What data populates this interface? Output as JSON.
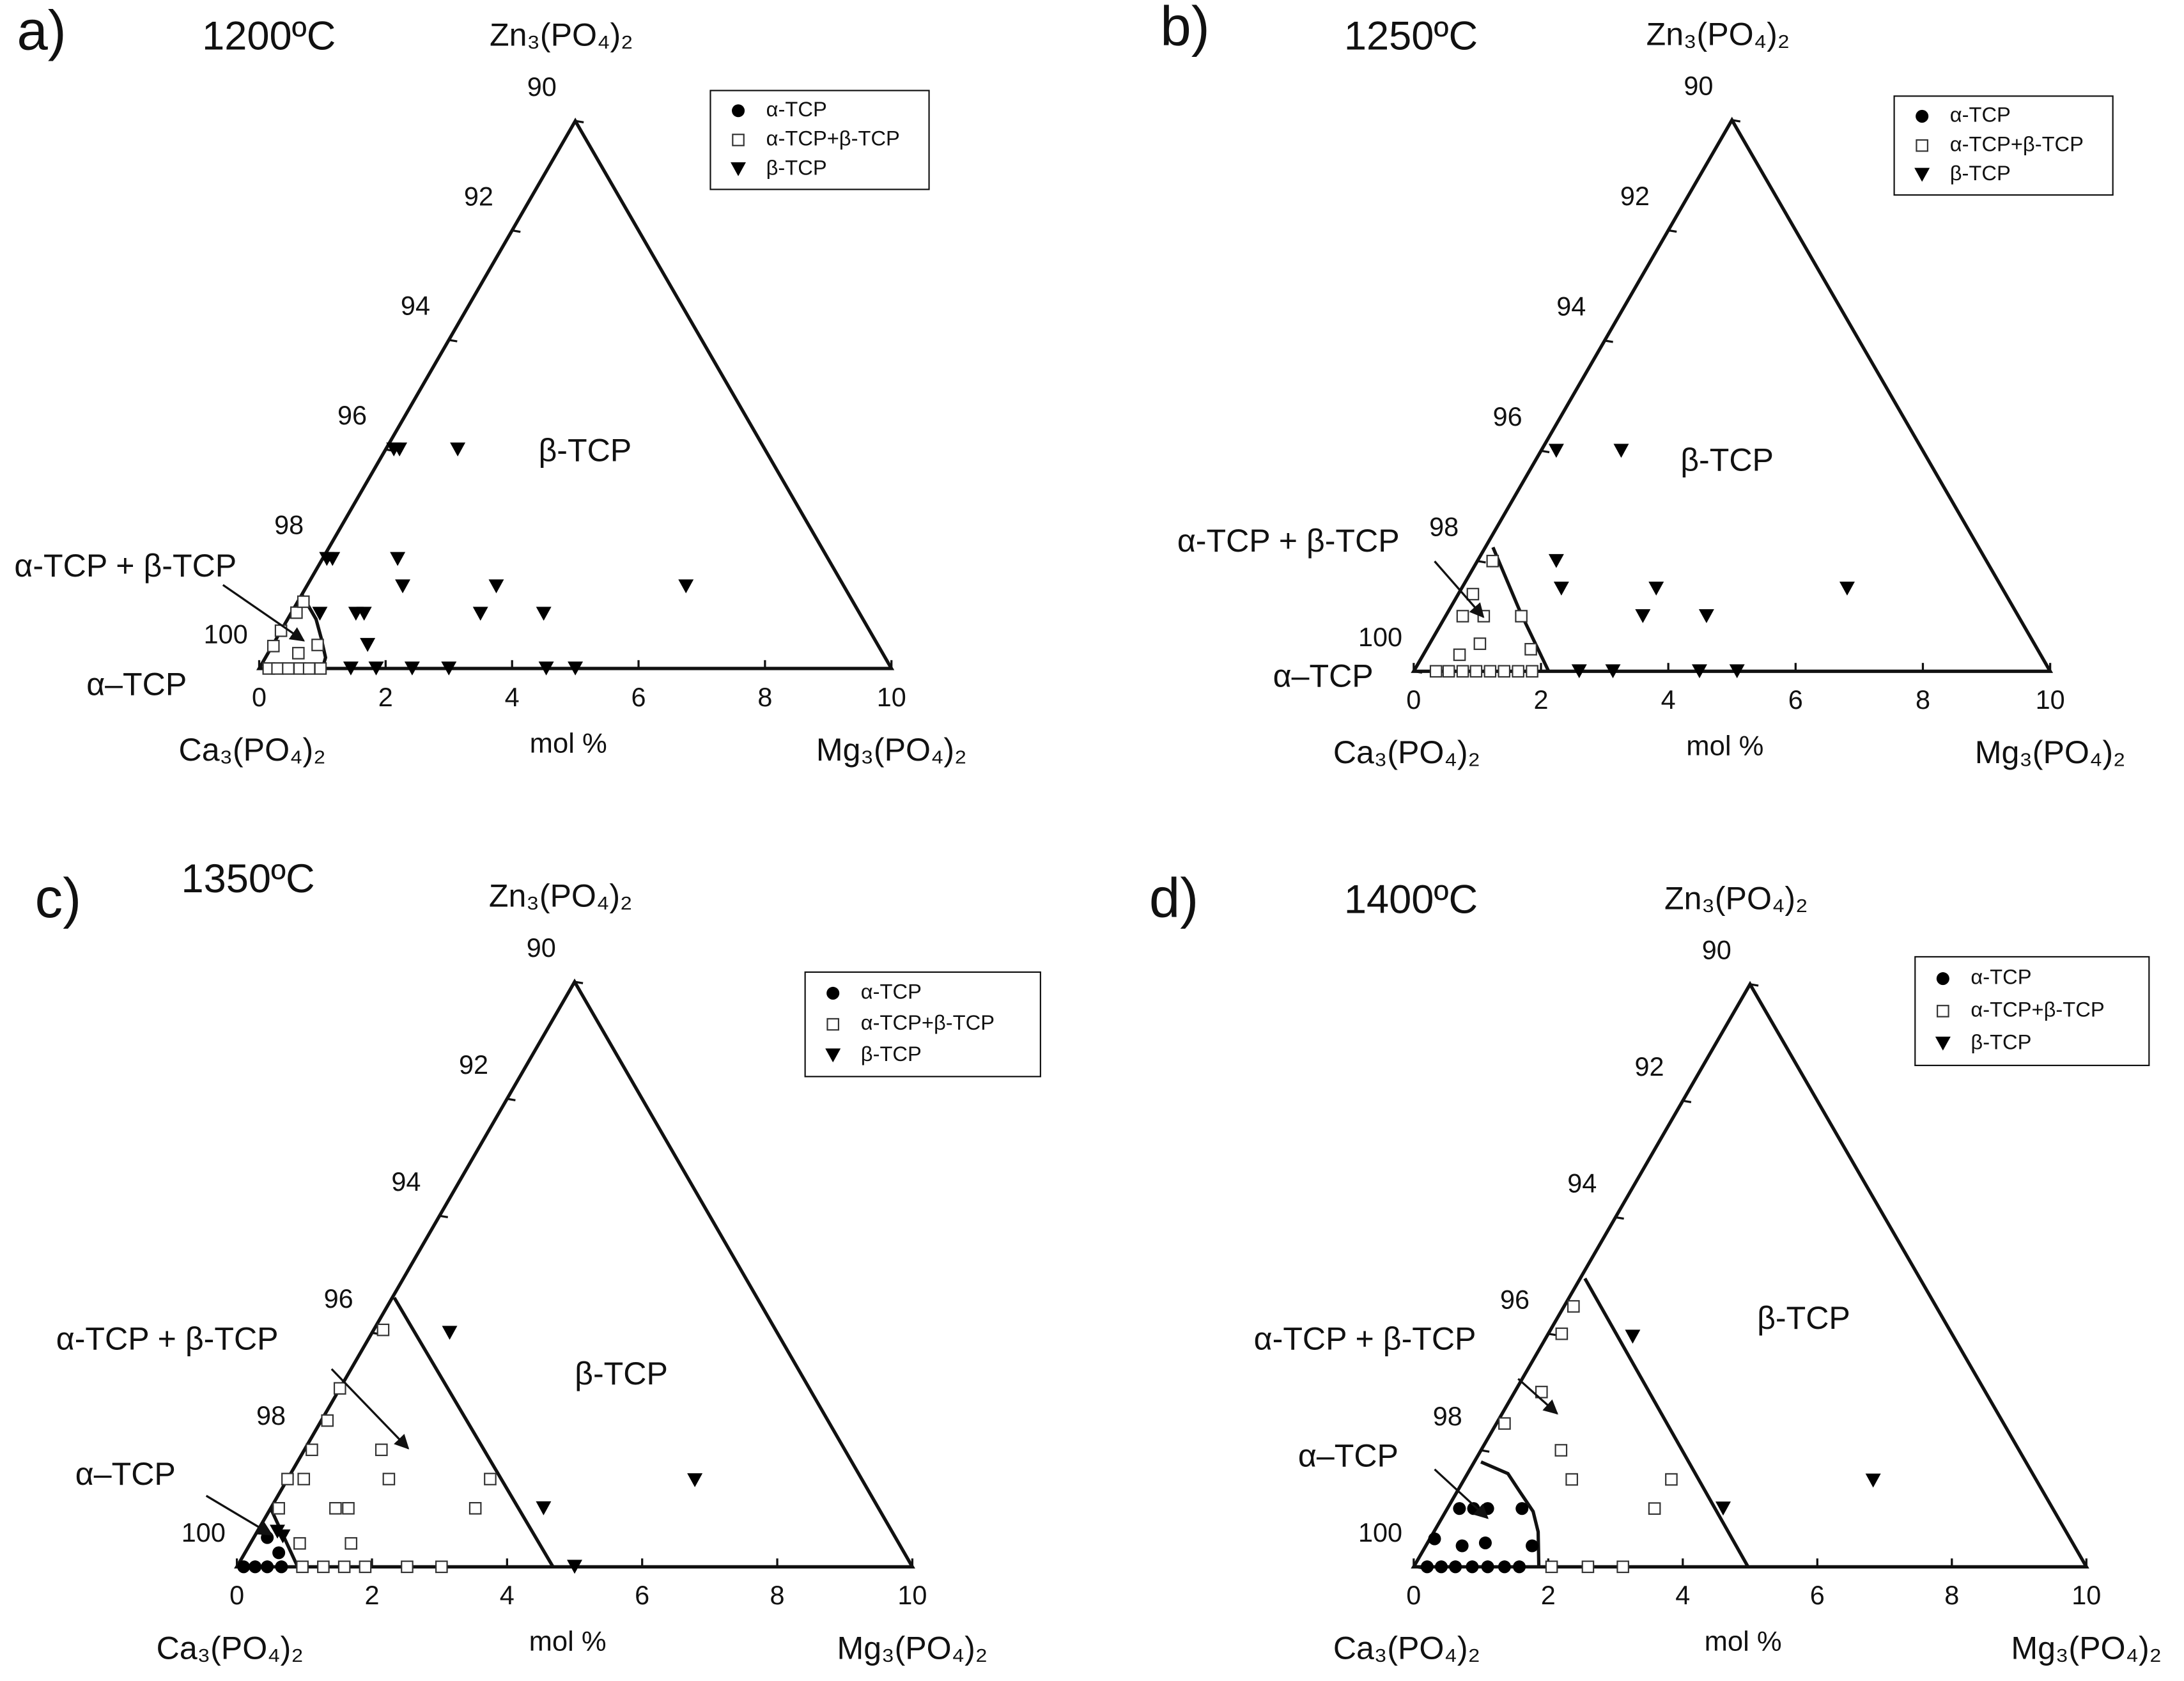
{
  "chart_data": [
    {
      "type": "ternary",
      "panel_label": "a)",
      "title": "1200ºC",
      "corner_labels": {
        "top": "Zn₃(PO₄)₂",
        "left": "Ca₃(PO₄)₂",
        "right": "Mg₃(PO₄)₂"
      },
      "xlabel": "mol %",
      "xlim": [
        0,
        10
      ],
      "xticks": [
        0,
        2,
        4,
        6,
        8,
        10
      ],
      "ylim": [
        100,
        90
      ],
      "yticks": [
        90,
        92,
        94,
        96,
        98,
        100
      ],
      "series": [
        {
          "name": "α-TCP",
          "marker": "circle",
          "color": "#000000",
          "x": [],
          "values": []
        },
        {
          "name": "α-TCP+β-TCP",
          "marker": "square",
          "color": "#333333",
          "x": [
            0.02,
            0,
            0.08,
            0.09,
            0.71,
            0.48,
            0.15,
            0.29,
            0.46,
            0.64,
            0.79,
            0.97
          ],
          "values": [
            0.41,
            0.69,
            1.02,
            1.22,
            0.43,
            0.28,
            0,
            0,
            0,
            0,
            0,
            0
          ]
        },
        {
          "name": "β-TCP",
          "marker": "triangle",
          "color": "#000000",
          "x": [
            0.13,
            0.22,
            1.14,
            0.07,
            0.16,
            1.19,
            1.52,
            3.0,
            6.0,
            0.46,
            1.03,
            1.16,
            3.0,
            4.0,
            1.5,
            1.45,
            1.85,
            2.42,
            3.0,
            4.54,
            5.0
          ],
          "values": [
            4.0,
            4.0,
            4.0,
            2.0,
            2.0,
            2.0,
            1.5,
            1.5,
            1.5,
            1.0,
            1.0,
            1.0,
            1.0,
            1.0,
            0.43,
            0,
            0,
            0,
            0,
            0,
            0
          ]
        }
      ],
      "boundaries": [
        {
          "x": [
            0,
            0.45,
            0.7,
            0.95,
            1.0
          ],
          "values": [
            1.35,
            0.9,
            0.56,
            0.2,
            0
          ]
        }
      ],
      "annotations": [
        {
          "text": "β-TCP"
        },
        {
          "text": "α-TCP + β-TCP"
        },
        {
          "text": "α–TCP"
        }
      ]
    },
    {
      "type": "ternary",
      "panel_label": "b)",
      "title": "1250ºC",
      "corner_labels": {
        "top": "Zn₃(PO₄)₂",
        "left": "Ca₃(PO₄)₂",
        "right": "Mg₃(PO₄)₂"
      },
      "xlabel": "mol %",
      "xlim": [
        0,
        10
      ],
      "xticks": [
        0,
        2,
        4,
        6,
        8,
        10
      ],
      "ylim": [
        100,
        90
      ],
      "yticks": [
        90,
        92,
        94,
        96,
        98,
        100
      ],
      "series": [
        {
          "name": "α-TCP",
          "marker": "circle",
          "color": "#000000",
          "x": [],
          "values": []
        },
        {
          "name": "α-TCP+β-TCP",
          "marker": "square",
          "color": "#333333",
          "x": [
            0.24,
            0.6,
            1.19,
            0.27,
            0.23,
            0.57,
            0.79,
            1.64,
            0.35,
            0.55,
            0.77,
            0.98,
            1.2,
            1.42,
            1.64,
            1.86
          ],
          "values": [
            2.0,
            1.0,
            1.0,
            1.0,
            1.4,
            0.3,
            0.5,
            0.4,
            0,
            0,
            0,
            0,
            0,
            0,
            0,
            0
          ]
        },
        {
          "name": "β-TCP",
          "marker": "triangle",
          "color": "#000000",
          "x": [
            0.24,
            1.26,
            1.24,
            1.57,
            3.06,
            6.06,
            3.1,
            4.1,
            2.6,
            3.13,
            4.49,
            5.08
          ],
          "values": [
            4,
            4,
            2,
            1.5,
            1.5,
            1.5,
            1,
            1,
            0,
            0,
            0,
            0
          ]
        }
      ],
      "boundaries": [
        {
          "x": [
            0.12,
            1.15,
            2.12
          ],
          "values": [
            2.25,
            1.06,
            0
          ]
        }
      ],
      "annotations": [
        {
          "text": "β-TCP"
        },
        {
          "text": "α-TCP + β-TCP"
        },
        {
          "text": "α–TCP"
        }
      ]
    },
    {
      "type": "ternary",
      "panel_label": "c)",
      "title": "1350ºC",
      "corner_labels": {
        "top": "Zn₃(PO₄)₂",
        "left": "Ca₃(PO₄)₂",
        "right": "Mg₃(PO₄)₂"
      },
      "xlabel": "mol %",
      "xlim": [
        0,
        10
      ],
      "xticks": [
        0,
        2,
        4,
        6,
        8,
        10
      ],
      "ylim": [
        100,
        90
      ],
      "yticks": [
        90,
        92,
        94,
        96,
        98,
        100
      ],
      "series": [
        {
          "name": "α-TCP",
          "marker": "circle",
          "color": "#000000",
          "x": [
            0.2,
            0.5,
            0.1,
            0.27,
            0.45,
            0.66
          ],
          "values": [
            0.5,
            0.24,
            0,
            0,
            0,
            0
          ]
        },
        {
          "name": "α-TCP+β-TCP",
          "marker": "square",
          "color": "#333333",
          "x": [
            0.14,
            0,
            0.09,
            0.11,
            1.14,
            0,
            0.24,
            1.5,
            3.0,
            0.12,
            0.96,
            1.15,
            3.03,
            0.73,
            1.49,
            0.97,
            1.28,
            1.59,
            1.9,
            2.52,
            3.03
          ],
          "values": [
            4.05,
            3.05,
            2.5,
            2.0,
            2.0,
            1.5,
            1.5,
            1.5,
            1.5,
            1.0,
            1.0,
            1.0,
            1.0,
            0.4,
            0.4,
            0,
            0,
            0,
            0,
            0,
            0
          ]
        },
        {
          "name": "β-TCP",
          "marker": "triangle",
          "color": "#000000",
          "x": [
            1.15,
            4.04,
            6.04,
            5.0,
            0.3,
            0.42
          ],
          "values": [
            4.0,
            1.0,
            1.48,
            0,
            0.6,
            0.52
          ]
        }
      ],
      "boundaries": [
        {
          "x": [
            0.03,
            4.68
          ],
          "values": [
            4.6,
            0
          ]
        },
        {
          "x": [
            0,
            0.9
          ],
          "values": [
            1.0,
            0
          ]
        }
      ],
      "annotations": [
        {
          "text": "β-TCP"
        },
        {
          "text": "α-TCP + β-TCP"
        },
        {
          "text": "α–TCP"
        }
      ]
    },
    {
      "type": "ternary",
      "panel_label": "d)",
      "title": "1400ºC",
      "corner_labels": {
        "top": "Zn₃(PO₄)₂",
        "left": "Ca₃(PO₄)₂",
        "right": "Mg₃(PO₄)₂"
      },
      "xlabel": "mol %",
      "xlim": [
        0,
        10
      ],
      "xticks": [
        0,
        2,
        4,
        6,
        8,
        10
      ],
      "ylim": [
        100,
        90
      ],
      "yticks": [
        90,
        92,
        94,
        96,
        98,
        100
      ],
      "series": [
        {
          "name": "α-TCP",
          "marker": "circle",
          "color": "#000000",
          "x": [
            0.18,
            0.39,
            0.6,
            1.11,
            0.07,
            0.54,
            0.86,
            1.58,
            0.2,
            0.41,
            0.62,
            0.87,
            1.1,
            1.35,
            1.57
          ],
          "values": [
            1,
            1,
            1,
            1,
            0.48,
            0.36,
            0.41,
            0.36,
            0,
            0,
            0,
            0,
            0,
            0,
            0
          ]
        },
        {
          "name": "α-TCP+β-TCP",
          "marker": "square",
          "color": "#333333",
          "x": [
            0.14,
            0.2,
            0.4,
            0.12,
            1.19,
            1.6,
            3.08,
            3.08,
            2.05,
            2.59,
            3.11
          ],
          "values": [
            4.47,
            4.0,
            3.0,
            2.46,
            2.0,
            1.5,
            1.5,
            1.0,
            0,
            0,
            0
          ]
        },
        {
          "name": "β-TCP",
          "marker": "triangle",
          "color": "#000000",
          "x": [
            1.28,
            4.1,
            6.09
          ],
          "values": [
            3.95,
            1.0,
            1.48
          ]
        }
      ],
      "boundaries": [
        {
          "x": [
            0.07,
            4.97
          ],
          "values": [
            4.95,
            0
          ]
        },
        {
          "x": [
            0.1,
            0.6,
            0.9,
            1.3,
            1.55,
            1.86
          ],
          "values": [
            1.8,
            1.6,
            1.32,
            0.95,
            0.6,
            0
          ]
        }
      ],
      "annotations": [
        {
          "text": "β-TCP"
        },
        {
          "text": "α-TCP + β-TCP"
        },
        {
          "text": "α–TCP"
        }
      ]
    }
  ]
}
